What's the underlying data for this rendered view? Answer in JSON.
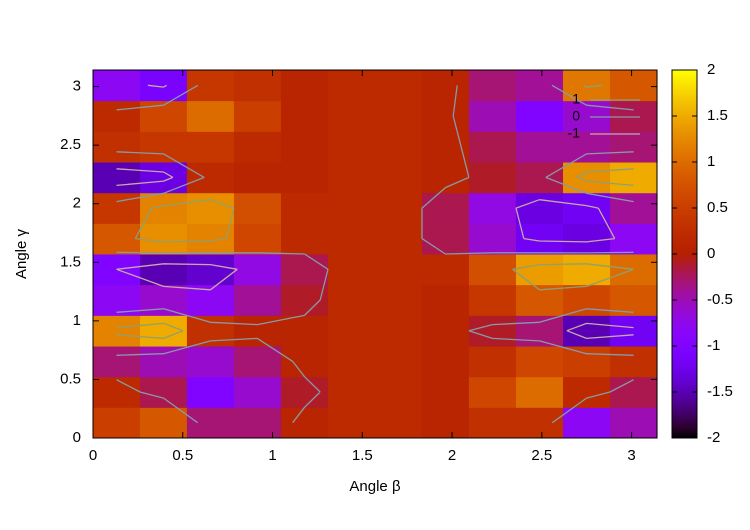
{
  "chart_data": {
    "type": "heatmap",
    "xlabel": "Angle β",
    "ylabel": "Angle γ",
    "xlim": [
      0,
      3.1416
    ],
    "ylim": [
      0,
      3.1416
    ],
    "xticks": [
      0,
      0.5,
      1,
      1.5,
      2,
      2.5,
      3
    ],
    "yticks": [
      0,
      0.5,
      1,
      1.5,
      2,
      2.5,
      3
    ],
    "cblim": [
      -2,
      2
    ],
    "cbticks": [
      -2,
      -1.5,
      -1,
      -0.5,
      0,
      0.5,
      1,
      1.5,
      2
    ],
    "x": [
      0.131,
      0.393,
      0.654,
      0.916,
      1.178,
      1.44,
      1.702,
      1.963,
      2.225,
      2.487,
      2.749,
      3.011
    ],
    "y": [
      0.131,
      0.393,
      0.654,
      0.916,
      1.178,
      1.44,
      1.702,
      1.963,
      2.225,
      2.487,
      2.749,
      3.011
    ],
    "z": [
      [
        0.5,
        0.8,
        -0.3,
        -0.3,
        0.1,
        0.2,
        0.2,
        0.1,
        0.3,
        0.3,
        -0.8,
        -0.5
      ],
      [
        0.2,
        -0.2,
        -1.0,
        -0.6,
        -0.1,
        0.2,
        0.2,
        0.1,
        0.6,
        1.0,
        0.2,
        -0.2
      ],
      [
        -0.3,
        -0.5,
        -0.6,
        -0.3,
        0.1,
        0.2,
        0.2,
        0.1,
        0.3,
        0.6,
        0.5,
        0.3
      ],
      [
        1.2,
        1.5,
        0.3,
        0.1,
        0.1,
        0.2,
        0.2,
        0.1,
        -0.1,
        -0.3,
        -1.5,
        -1.2
      ],
      [
        -0.8,
        -0.6,
        -0.8,
        -0.4,
        -0.1,
        0.2,
        0.2,
        0.1,
        0.4,
        0.8,
        0.6,
        0.8
      ],
      [
        -1.0,
        -1.5,
        -1.4,
        -0.7,
        -0.2,
        0.2,
        0.2,
        0.2,
        0.7,
        1.4,
        1.5,
        1.0
      ],
      [
        0.8,
        1.3,
        1.2,
        0.6,
        0.2,
        0.2,
        0.2,
        -0.2,
        -0.6,
        -1.2,
        -1.3,
        -0.8
      ],
      [
        0.4,
        1.2,
        1.3,
        0.7,
        0.2,
        0.2,
        0.2,
        -0.2,
        -0.7,
        -1.3,
        -1.2,
        -0.4
      ],
      [
        -1.5,
        -1.3,
        0.2,
        0.1,
        0.1,
        0.2,
        0.2,
        0.1,
        -0.1,
        -0.2,
        1.3,
        1.5
      ],
      [
        0.3,
        0.4,
        0.4,
        0.2,
        0.1,
        0.2,
        0.2,
        0.1,
        -0.2,
        -0.4,
        -0.4,
        -0.3
      ],
      [
        0.2,
        0.6,
        1.0,
        0.5,
        0.1,
        0.2,
        0.2,
        0.1,
        -0.5,
        -1.0,
        -0.6,
        -0.2
      ],
      [
        -0.8,
        -1.1,
        0.4,
        0.3,
        0.1,
        0.2,
        0.2,
        0.1,
        -0.3,
        -0.4,
        1.1,
        0.8
      ]
    ],
    "contours": [
      {
        "level": 1,
        "color": "#8fa070"
      },
      {
        "level": 0,
        "color": "#8899aa"
      },
      {
        "level": -1,
        "color": "#c8a8a8"
      }
    ]
  }
}
